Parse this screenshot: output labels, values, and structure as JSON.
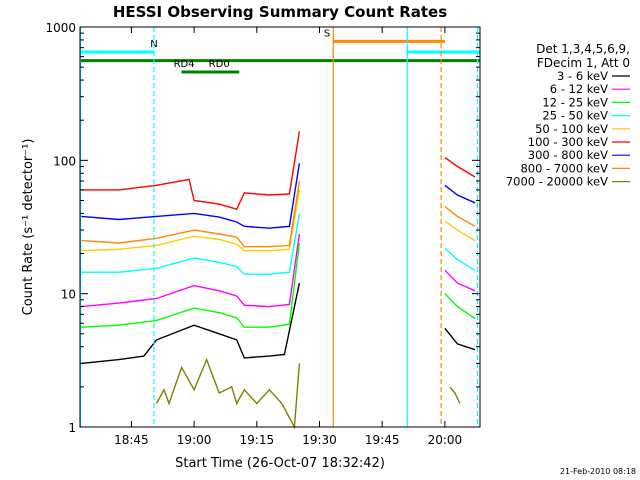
{
  "chart_data": {
    "type": "line",
    "title": "HESSI Observing Summary Count Rates",
    "xlabel": "Start Time (26-Oct-07 18:32:42)",
    "ylabel": "Count Rate (s⁻¹ detector⁻¹)",
    "ylog": true,
    "ylim": [
      1,
      1000
    ],
    "xlim": [
      18.545,
      20.14
    ],
    "x_ticks": [
      {
        "value": 18.75,
        "label": "18:45"
      },
      {
        "value": 19.0,
        "label": "19:00"
      },
      {
        "value": 19.25,
        "label": "19:15"
      },
      {
        "value": 19.5,
        "label": "19:30"
      },
      {
        "value": 19.75,
        "label": "19:45"
      },
      {
        "value": 20.0,
        "label": "20:00"
      }
    ],
    "y_ticks": [
      {
        "value": 1,
        "label": "1"
      },
      {
        "value": 10,
        "label": "10"
      },
      {
        "value": 100,
        "label": "100"
      },
      {
        "value": 1000,
        "label": "1000"
      }
    ],
    "legend_title": [
      "Det 1,3,4,5,6,9,",
      "FDecim 1, Att 0"
    ],
    "legend_position": "right",
    "series": [
      {
        "name": "3 - 6 keV",
        "color": "#000000",
        "segments": [
          {
            "x": [
              18.55,
              18.7,
              18.8,
              18.85,
              19.0,
              19.1,
              19.17,
              19.2,
              19.3,
              19.36,
              19.42
            ],
            "y": [
              3.0,
              3.2,
              3.4,
              4.5,
              5.8,
              5.0,
              4.5,
              3.3,
              3.4,
              3.5,
              12.0
            ]
          },
          {
            "x": [
              20.0,
              20.05,
              20.12
            ],
            "y": [
              5.5,
              4.2,
              3.8
            ]
          }
        ]
      },
      {
        "name": "6 - 12 keV",
        "color": "#ff00ff",
        "segments": [
          {
            "x": [
              18.55,
              18.7,
              18.85,
              19.0,
              19.1,
              19.17,
              19.2,
              19.3,
              19.38,
              19.42
            ],
            "y": [
              8.0,
              8.5,
              9.2,
              11.5,
              10.5,
              9.6,
              8.2,
              8.0,
              8.3,
              28.0
            ]
          },
          {
            "x": [
              20.0,
              20.05,
              20.12
            ],
            "y": [
              15.0,
              12.0,
              10.5
            ]
          }
        ]
      },
      {
        "name": "12 - 25 keV",
        "color": "#00ff00",
        "segments": [
          {
            "x": [
              18.55,
              18.7,
              18.85,
              19.0,
              19.1,
              19.17,
              19.2,
              19.3,
              19.38,
              19.42
            ],
            "y": [
              5.6,
              5.8,
              6.3,
              7.8,
              7.2,
              6.6,
              5.6,
              5.6,
              5.9,
              24.0
            ]
          },
          {
            "x": [
              20.0,
              20.05,
              20.12
            ],
            "y": [
              10.0,
              8.0,
              6.5
            ]
          }
        ]
      },
      {
        "name": "25 - 50 keV",
        "color": "#00ffff",
        "segments": [
          {
            "x": [
              18.55,
              18.7,
              18.85,
              19.0,
              19.1,
              19.17,
              19.2,
              19.3,
              19.38,
              19.42
            ],
            "y": [
              14.5,
              14.5,
              15.5,
              18.5,
              17.2,
              16.0,
              14.0,
              14.0,
              14.5,
              40.0
            ]
          },
          {
            "x": [
              20.0,
              20.05,
              20.12
            ],
            "y": [
              22.0,
              18.0,
              15.0
            ]
          }
        ]
      },
      {
        "name": "50 - 100 keV",
        "color": "#ffcc00",
        "segments": [
          {
            "x": [
              18.55,
              18.7,
              18.85,
              19.0,
              19.1,
              19.17,
              19.2,
              19.3,
              19.38,
              19.42
            ],
            "y": [
              21.0,
              21.5,
              23.0,
              27.0,
              25.5,
              23.5,
              21.0,
              21.0,
              21.5,
              60.0
            ]
          },
          {
            "x": [
              20.0,
              20.05,
              20.12
            ],
            "y": [
              35.0,
              30.0,
              25.0
            ]
          }
        ]
      },
      {
        "name": "100 - 300 keV",
        "color": "#ff0000",
        "segments": [
          {
            "x": [
              18.55,
              18.7,
              18.85,
              18.98,
              19.0,
              19.1,
              19.17,
              19.2,
              19.3,
              19.38,
              19.42
            ],
            "y": [
              60.0,
              60.0,
              65.0,
              72.0,
              50.0,
              47.0,
              43.0,
              57.0,
              55.0,
              56.0,
              165.0
            ]
          },
          {
            "x": [
              20.0,
              20.05,
              20.12
            ],
            "y": [
              105.0,
              90.0,
              75.0
            ]
          }
        ]
      },
      {
        "name": "300 - 800 keV",
        "color": "#0000ff",
        "segments": [
          {
            "x": [
              18.55,
              18.7,
              18.85,
              19.0,
              19.1,
              19.17,
              19.2,
              19.3,
              19.38,
              19.42
            ],
            "y": [
              38.0,
              36.0,
              38.0,
              40.0,
              37.5,
              34.5,
              32.0,
              31.0,
              32.0,
              95.0
            ]
          },
          {
            "x": [
              20.0,
              20.05,
              20.12
            ],
            "y": [
              65.0,
              55.0,
              48.0
            ]
          }
        ]
      },
      {
        "name": "800 - 7000 keV",
        "color": "#ff8800",
        "segments": [
          {
            "x": [
              18.55,
              18.7,
              18.85,
              19.0,
              19.1,
              19.17,
              19.2,
              19.3,
              19.38,
              19.42
            ],
            "y": [
              25.0,
              24.0,
              26.0,
              30.0,
              28.0,
              26.5,
              22.5,
              22.5,
              23.0,
              70.0
            ]
          },
          {
            "x": [
              20.0,
              20.05,
              20.12
            ],
            "y": [
              45.0,
              38.0,
              32.0
            ]
          }
        ]
      },
      {
        "name": "7000 - 20000 keV",
        "color": "#808000",
        "segments": [
          {
            "x": [
              18.85,
              18.88,
              18.9,
              18.95,
              19.0,
              19.05,
              19.1,
              19.15,
              19.17,
              19.2,
              19.25,
              19.3,
              19.35,
              19.4,
              19.42
            ],
            "y": [
              1.5,
              1.9,
              1.5,
              2.8,
              1.9,
              3.2,
              1.8,
              2.0,
              1.5,
              1.9,
              1.5,
              1.9,
              1.5,
              1.0,
              3.0
            ]
          },
          {
            "x": [
              20.02,
              20.04,
              20.06
            ],
            "y": [
              2.0,
              1.8,
              1.5
            ]
          }
        ]
      }
    ],
    "flags": [
      {
        "label": "N",
        "color": "#00ffff",
        "y": 650,
        "x_start": 18.545,
        "x_end": 18.84,
        "text_x": 18.84
      },
      {
        "label": "",
        "color": "#00ffff",
        "y": 650,
        "x_start": 19.85,
        "x_end": 20.14
      },
      {
        "label": "S",
        "color": "#ff8800",
        "y": 780,
        "x_start": 19.555,
        "x_end": 20.0,
        "text_x": 19.53
      },
      {
        "label": "",
        "color": "#008000",
        "y": 560,
        "x_start": 18.545,
        "x_end": 20.14
      },
      {
        "label": "RD0",
        "color": "#008000",
        "y": 460,
        "x_start": 19.02,
        "x_end": 19.18,
        "text_x": 19.1
      },
      {
        "label": "RD4",
        "color": "#008000",
        "y": 460,
        "x_start": 18.95,
        "x_end": 19.02,
        "text_x": 18.96
      }
    ],
    "vlines": [
      {
        "x": 18.547,
        "color": "#00ffff",
        "dash": false
      },
      {
        "x": 18.84,
        "color": "#00ffff",
        "dash": true
      },
      {
        "x": 19.555,
        "color": "#ff8800",
        "dash": false
      },
      {
        "x": 19.85,
        "color": "#00ffff",
        "dash": false
      },
      {
        "x": 19.985,
        "color": "#ff8800",
        "dash": true
      },
      {
        "x": 20.13,
        "color": "#00ffff",
        "dash": true
      }
    ]
  },
  "footer": {
    "timestamp": "21-Feb-2010 08:18"
  }
}
